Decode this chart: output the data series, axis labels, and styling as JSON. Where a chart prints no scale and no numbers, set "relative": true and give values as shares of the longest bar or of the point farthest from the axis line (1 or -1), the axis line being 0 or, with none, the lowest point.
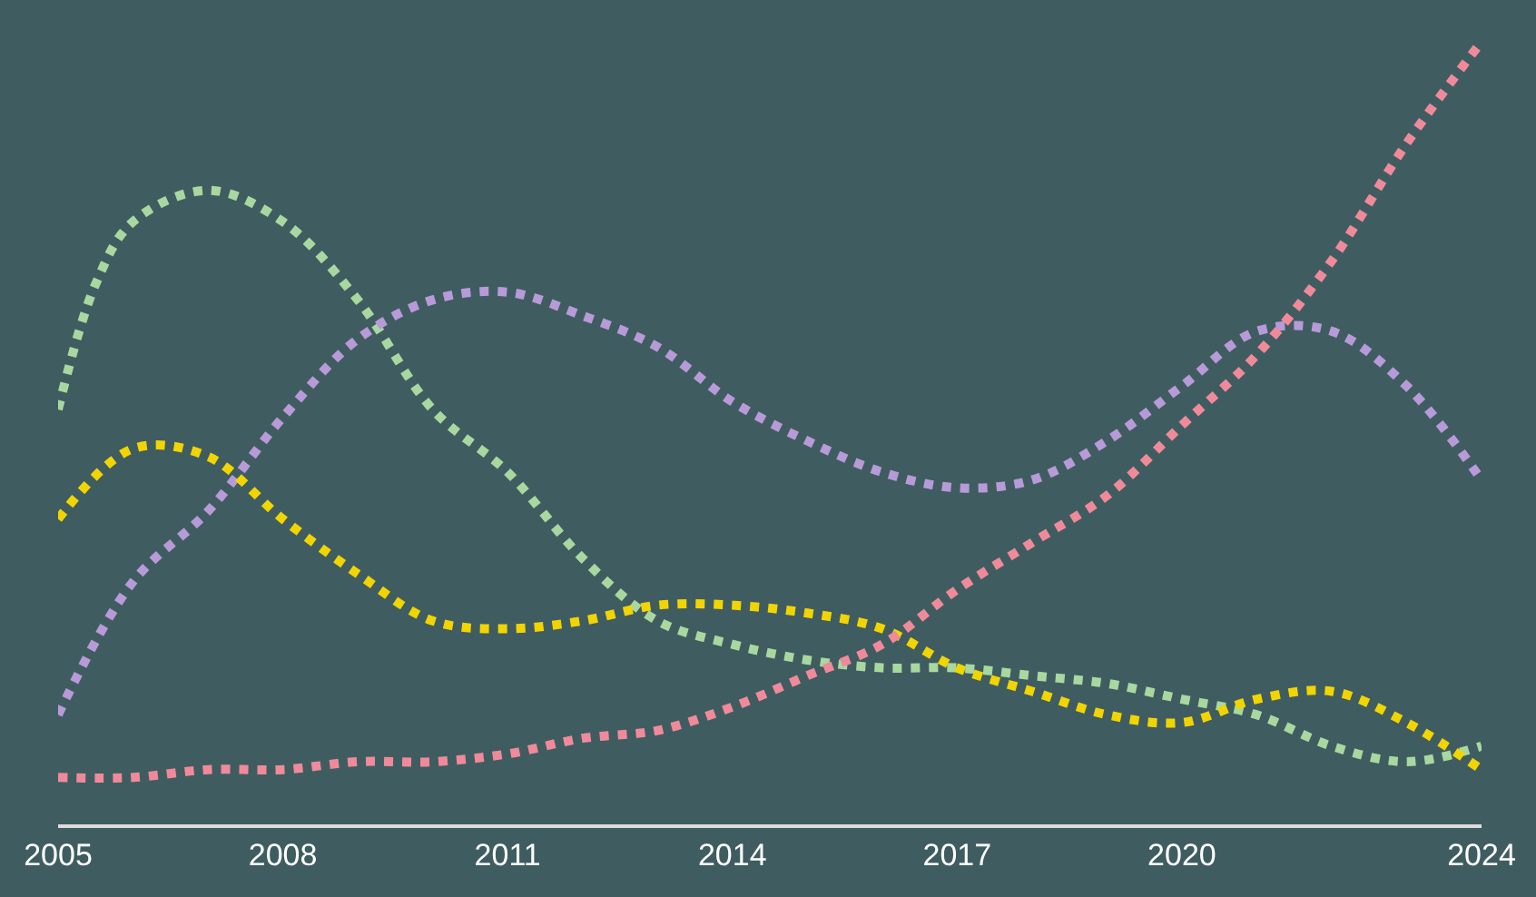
{
  "chart_data": {
    "type": "line",
    "relative": true,
    "line_style": "dotted",
    "tick_labels": "x",
    "x": [
      2005,
      2006,
      2007,
      2008,
      2009,
      2010,
      2011,
      2012,
      2013,
      2014,
      2015,
      2016,
      2017,
      2018,
      2019,
      2020,
      2021,
      2022,
      2023,
      2024
    ],
    "xlim": [
      2005,
      2024
    ],
    "xticks": [
      2005,
      2008,
      2011,
      2014,
      2017,
      2020,
      2024
    ],
    "series": [
      {
        "color": "#a8d8a0",
        "x": [
          2005,
          2005.5,
          2006,
          2007,
          2008,
          2009,
          2010,
          2011,
          2012,
          2013,
          2014,
          2015,
          2016,
          2017,
          2018,
          2019,
          2020,
          2021,
          2022,
          2023,
          2024
        ],
        "values": [
          0.53,
          0.69,
          0.77,
          0.81,
          0.77,
          0.67,
          0.53,
          0.45,
          0.34,
          0.26,
          0.23,
          0.21,
          0.2,
          0.2,
          0.19,
          0.18,
          0.16,
          0.14,
          0.1,
          0.08,
          0.1
        ]
      },
      {
        "color": "#b89ad8",
        "values": [
          0.14,
          0.31,
          0.4,
          0.52,
          0.62,
          0.67,
          0.68,
          0.65,
          0.61,
          0.54,
          0.49,
          0.45,
          0.43,
          0.44,
          0.49,
          0.56,
          0.63,
          0.63,
          0.56,
          0.44
        ]
      },
      {
        "color": "#f2d500",
        "values": [
          0.39,
          0.48,
          0.47,
          0.39,
          0.32,
          0.26,
          0.25,
          0.26,
          0.28,
          0.28,
          0.27,
          0.25,
          0.2,
          0.17,
          0.14,
          0.13,
          0.16,
          0.17,
          0.13,
          0.07
        ]
      },
      {
        "color": "#f08a9a",
        "values": [
          0.06,
          0.06,
          0.07,
          0.07,
          0.08,
          0.08,
          0.09,
          0.11,
          0.12,
          0.15,
          0.19,
          0.23,
          0.3,
          0.36,
          0.42,
          0.51,
          0.6,
          0.72,
          0.87,
          1
        ]
      }
    ]
  }
}
